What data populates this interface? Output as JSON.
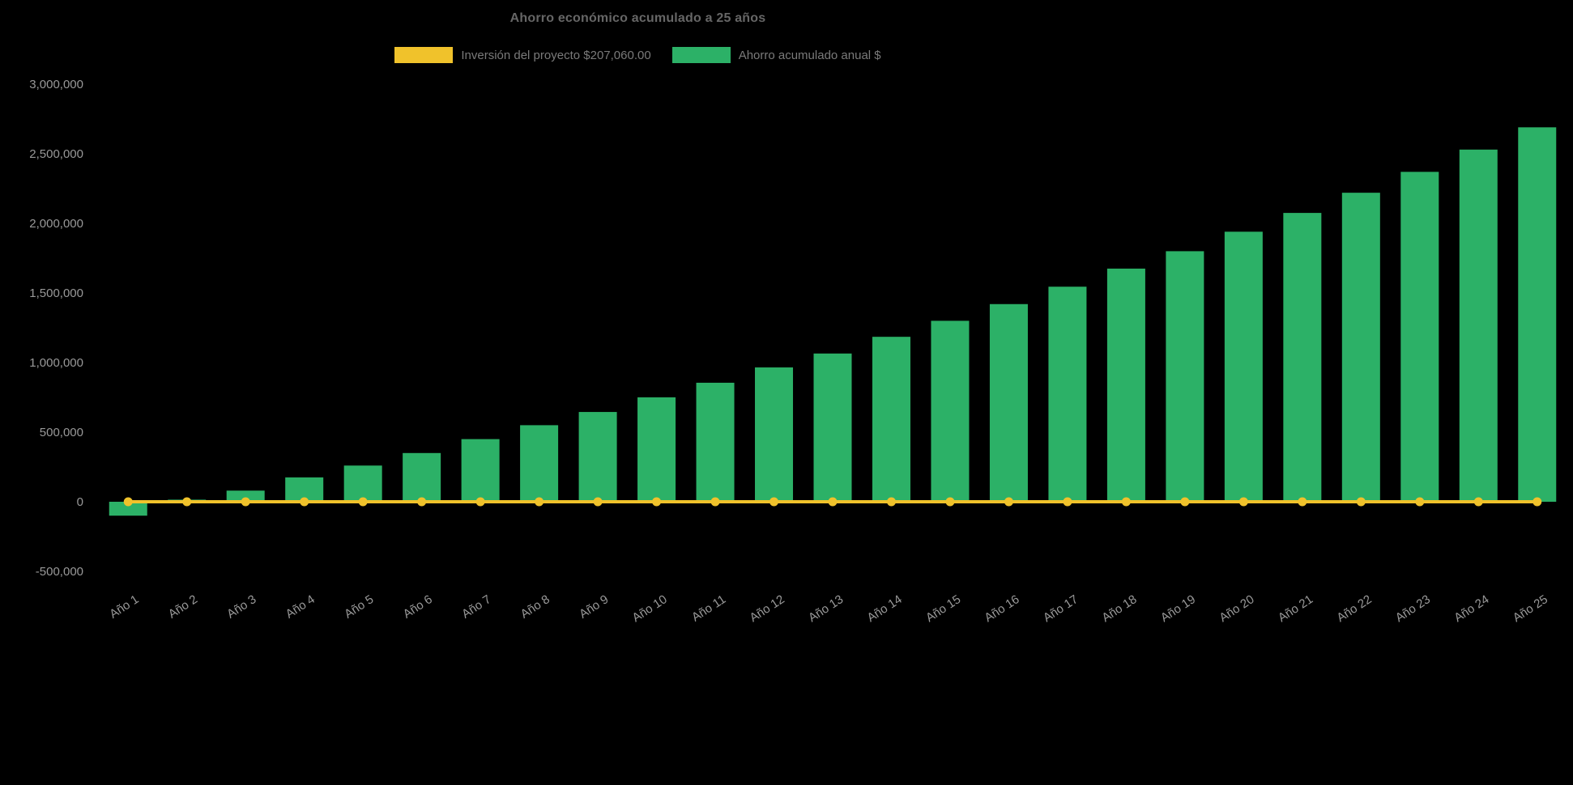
{
  "chart_data": {
    "type": "bar",
    "title": "Ahorro económico acumulado a 25 años",
    "background_color": "#000000",
    "grid": false,
    "legend_position": "top",
    "categories": [
      "Año 1",
      "Año 2",
      "Año 3",
      "Año 4",
      "Año 5",
      "Año 6",
      "Año 7",
      "Año 8",
      "Año 9",
      "Año 10",
      "Año 11",
      "Año 12",
      "Año 13",
      "Año 14",
      "Año 15",
      "Año 16",
      "Año 17",
      "Año 18",
      "Año 19",
      "Año 20",
      "Año 21",
      "Año 22",
      "Año 23",
      "Año 24",
      "Año 25"
    ],
    "series": [
      {
        "name": "Inversión del proyecto $207,060.00",
        "type": "line",
        "color": "#f0c22b",
        "values": [
          0,
          0,
          0,
          0,
          0,
          0,
          0,
          0,
          0,
          0,
          0,
          0,
          0,
          0,
          0,
          0,
          0,
          0,
          0,
          0,
          0,
          0,
          0,
          0,
          0
        ]
      },
      {
        "name": "Ahorro acumulado anual $",
        "type": "bar",
        "color": "#2cb167",
        "values": [
          -100000,
          15000,
          80000,
          175000,
          260000,
          350000,
          450000,
          550000,
          645000,
          750000,
          855000,
          965000,
          1065000,
          1185000,
          1300000,
          1420000,
          1545000,
          1675000,
          1800000,
          1940000,
          2075000,
          2220000,
          2370000,
          2530000,
          2690000
        ]
      }
    ],
    "ylim": [
      -500000,
      3000000
    ],
    "y_ticks": [
      {
        "value": -500000,
        "label": "-500,000"
      },
      {
        "value": 0,
        "label": "0"
      },
      {
        "value": 500000,
        "label": "500,000"
      },
      {
        "value": 1000000,
        "label": "1,000,000"
      },
      {
        "value": 1500000,
        "label": "1,500,000"
      },
      {
        "value": 2000000,
        "label": "2,000,000"
      },
      {
        "value": 2500000,
        "label": "2,500,000"
      },
      {
        "value": 3000000,
        "label": "3,000,000"
      }
    ]
  }
}
